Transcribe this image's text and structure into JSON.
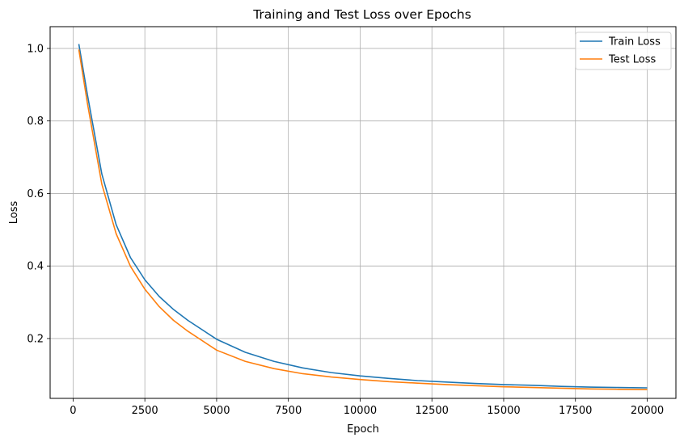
{
  "chart_data": {
    "type": "line",
    "title": "Training and Test Loss over Epochs",
    "xlabel": "Epoch",
    "ylabel": "Loss",
    "xlim": [
      -800,
      21000
    ],
    "ylim": [
      0.035,
      1.06
    ],
    "xticks": [
      0,
      2500,
      5000,
      7500,
      10000,
      12500,
      15000,
      17500,
      20000
    ],
    "yticks": [
      0.2,
      0.4,
      0.6,
      0.8,
      1.0
    ],
    "xtick_labels": [
      "0",
      "2500",
      "5000",
      "7500",
      "10000",
      "12500",
      "15000",
      "17500",
      "20000"
    ],
    "ytick_labels": [
      "0.2",
      "0.4",
      "0.6",
      "0.8",
      "1.0"
    ],
    "grid": true,
    "legend_position": "top-right",
    "x": [
      200,
      500,
      1000,
      1500,
      2000,
      2500,
      3000,
      3500,
      4000,
      5000,
      6000,
      7000,
      8000,
      9000,
      10000,
      11000,
      12000,
      13000,
      14000,
      15000,
      16000,
      17000,
      18000,
      19000,
      20000
    ],
    "series": [
      {
        "name": "Train Loss",
        "color": "#1f77b4",
        "values": [
          1.012,
          0.872,
          0.654,
          0.514,
          0.423,
          0.362,
          0.316,
          0.28,
          0.25,
          0.198,
          0.162,
          0.137,
          0.119,
          0.106,
          0.097,
          0.09,
          0.084,
          0.08,
          0.076,
          0.073,
          0.071,
          0.068,
          0.066,
          0.065,
          0.064
        ]
      },
      {
        "name": "Test Loss",
        "color": "#ff7f0e",
        "values": [
          0.997,
          0.848,
          0.626,
          0.489,
          0.399,
          0.336,
          0.288,
          0.25,
          0.22,
          0.168,
          0.137,
          0.117,
          0.103,
          0.094,
          0.087,
          0.081,
          0.077,
          0.073,
          0.07,
          0.067,
          0.065,
          0.063,
          0.061,
          0.06,
          0.059
        ]
      }
    ]
  }
}
